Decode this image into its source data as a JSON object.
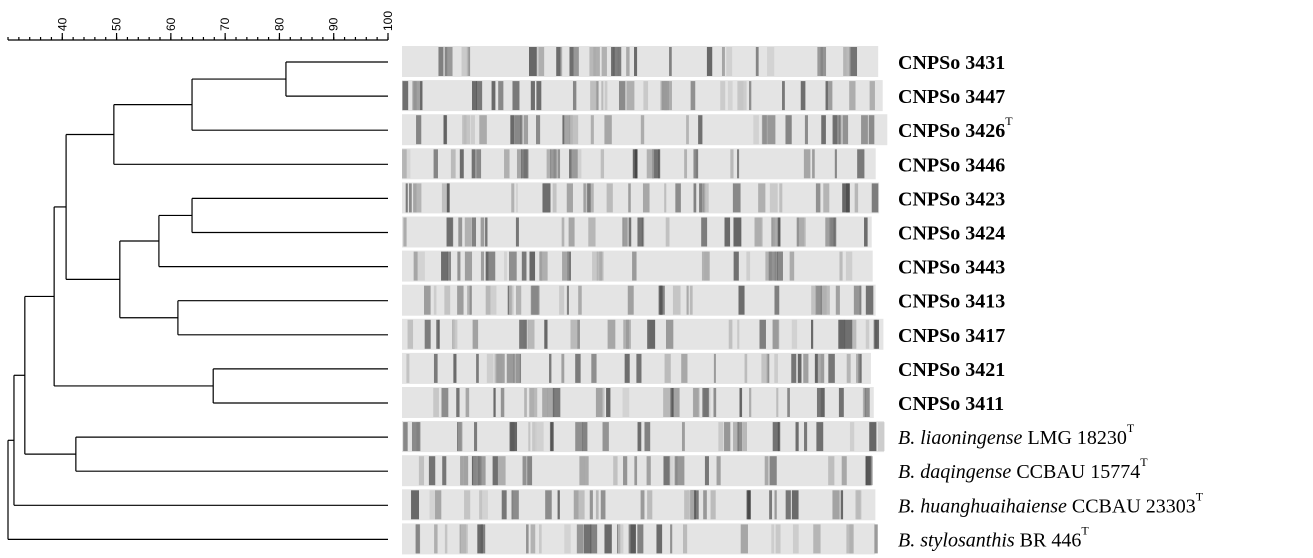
{
  "chart_data": {
    "type": "dendrogram",
    "xlim": [
      30,
      100
    ],
    "xticks": [
      40,
      50,
      60,
      70,
      80,
      90,
      100
    ],
    "tree": {
      "height": 30.0,
      "children": [
        {
          "height": 31.1,
          "children": [
            {
              "height": 33.1,
              "children": [
                {
                  "height": 38.5,
                  "children": [
                    {
                      "height": 40.7,
                      "children": [
                        {
                          "height": 49.5,
                          "children": [
                            {
                              "height": 63.9,
                              "children": [
                                {
                                  "height": 81.2,
                                  "children": [
                                    {
                                      "label": "CNPSo 3431"
                                    },
                                    {
                                      "label": "CNPSo 3447"
                                    }
                                  ]
                                },
                                {
                                  "label": "CNPSo 3426",
                                  "superscript": "T"
                                }
                              ]
                            },
                            {
                              "label": "CNPSo 3446"
                            }
                          ]
                        },
                        {
                          "height": 50.6,
                          "children": [
                            {
                              "height": 57.8,
                              "children": [
                                {
                                  "height": 63.9,
                                  "children": [
                                    {
                                      "label": "CNPSo 3423"
                                    },
                                    {
                                      "label": "CNPSo 3424"
                                    }
                                  ]
                                },
                                {
                                  "label": "CNPSo 3443"
                                }
                              ]
                            },
                            {
                              "height": 61.3,
                              "children": [
                                {
                                  "label": "CNPSo 3413"
                                },
                                {
                                  "label": "CNPSo 3417"
                                }
                              ]
                            }
                          ]
                        }
                      ]
                    },
                    {
                      "height": 67.8,
                      "children": [
                        {
                          "label": "CNPSo 3421"
                        },
                        {
                          "label": "CNPSo 3411"
                        }
                      ]
                    }
                  ]
                },
                {
                  "height": 42.5,
                  "children": [
                    {
                      "species": "B. liaoningense",
                      "label": "LMG 18230",
                      "superscript": "T"
                    },
                    {
                      "species": "B. daqingense",
                      "label": "CCBAU 15774",
                      "superscript": "T"
                    }
                  ]
                }
              ]
            },
            {
              "species": "B. huanghuaihaiense",
              "label": "CCBAU 23303",
              "superscript": "T"
            }
          ]
        },
        {
          "species": "B. stylosanthis",
          "label": "BR 446",
          "superscript": "T"
        }
      ]
    }
  }
}
